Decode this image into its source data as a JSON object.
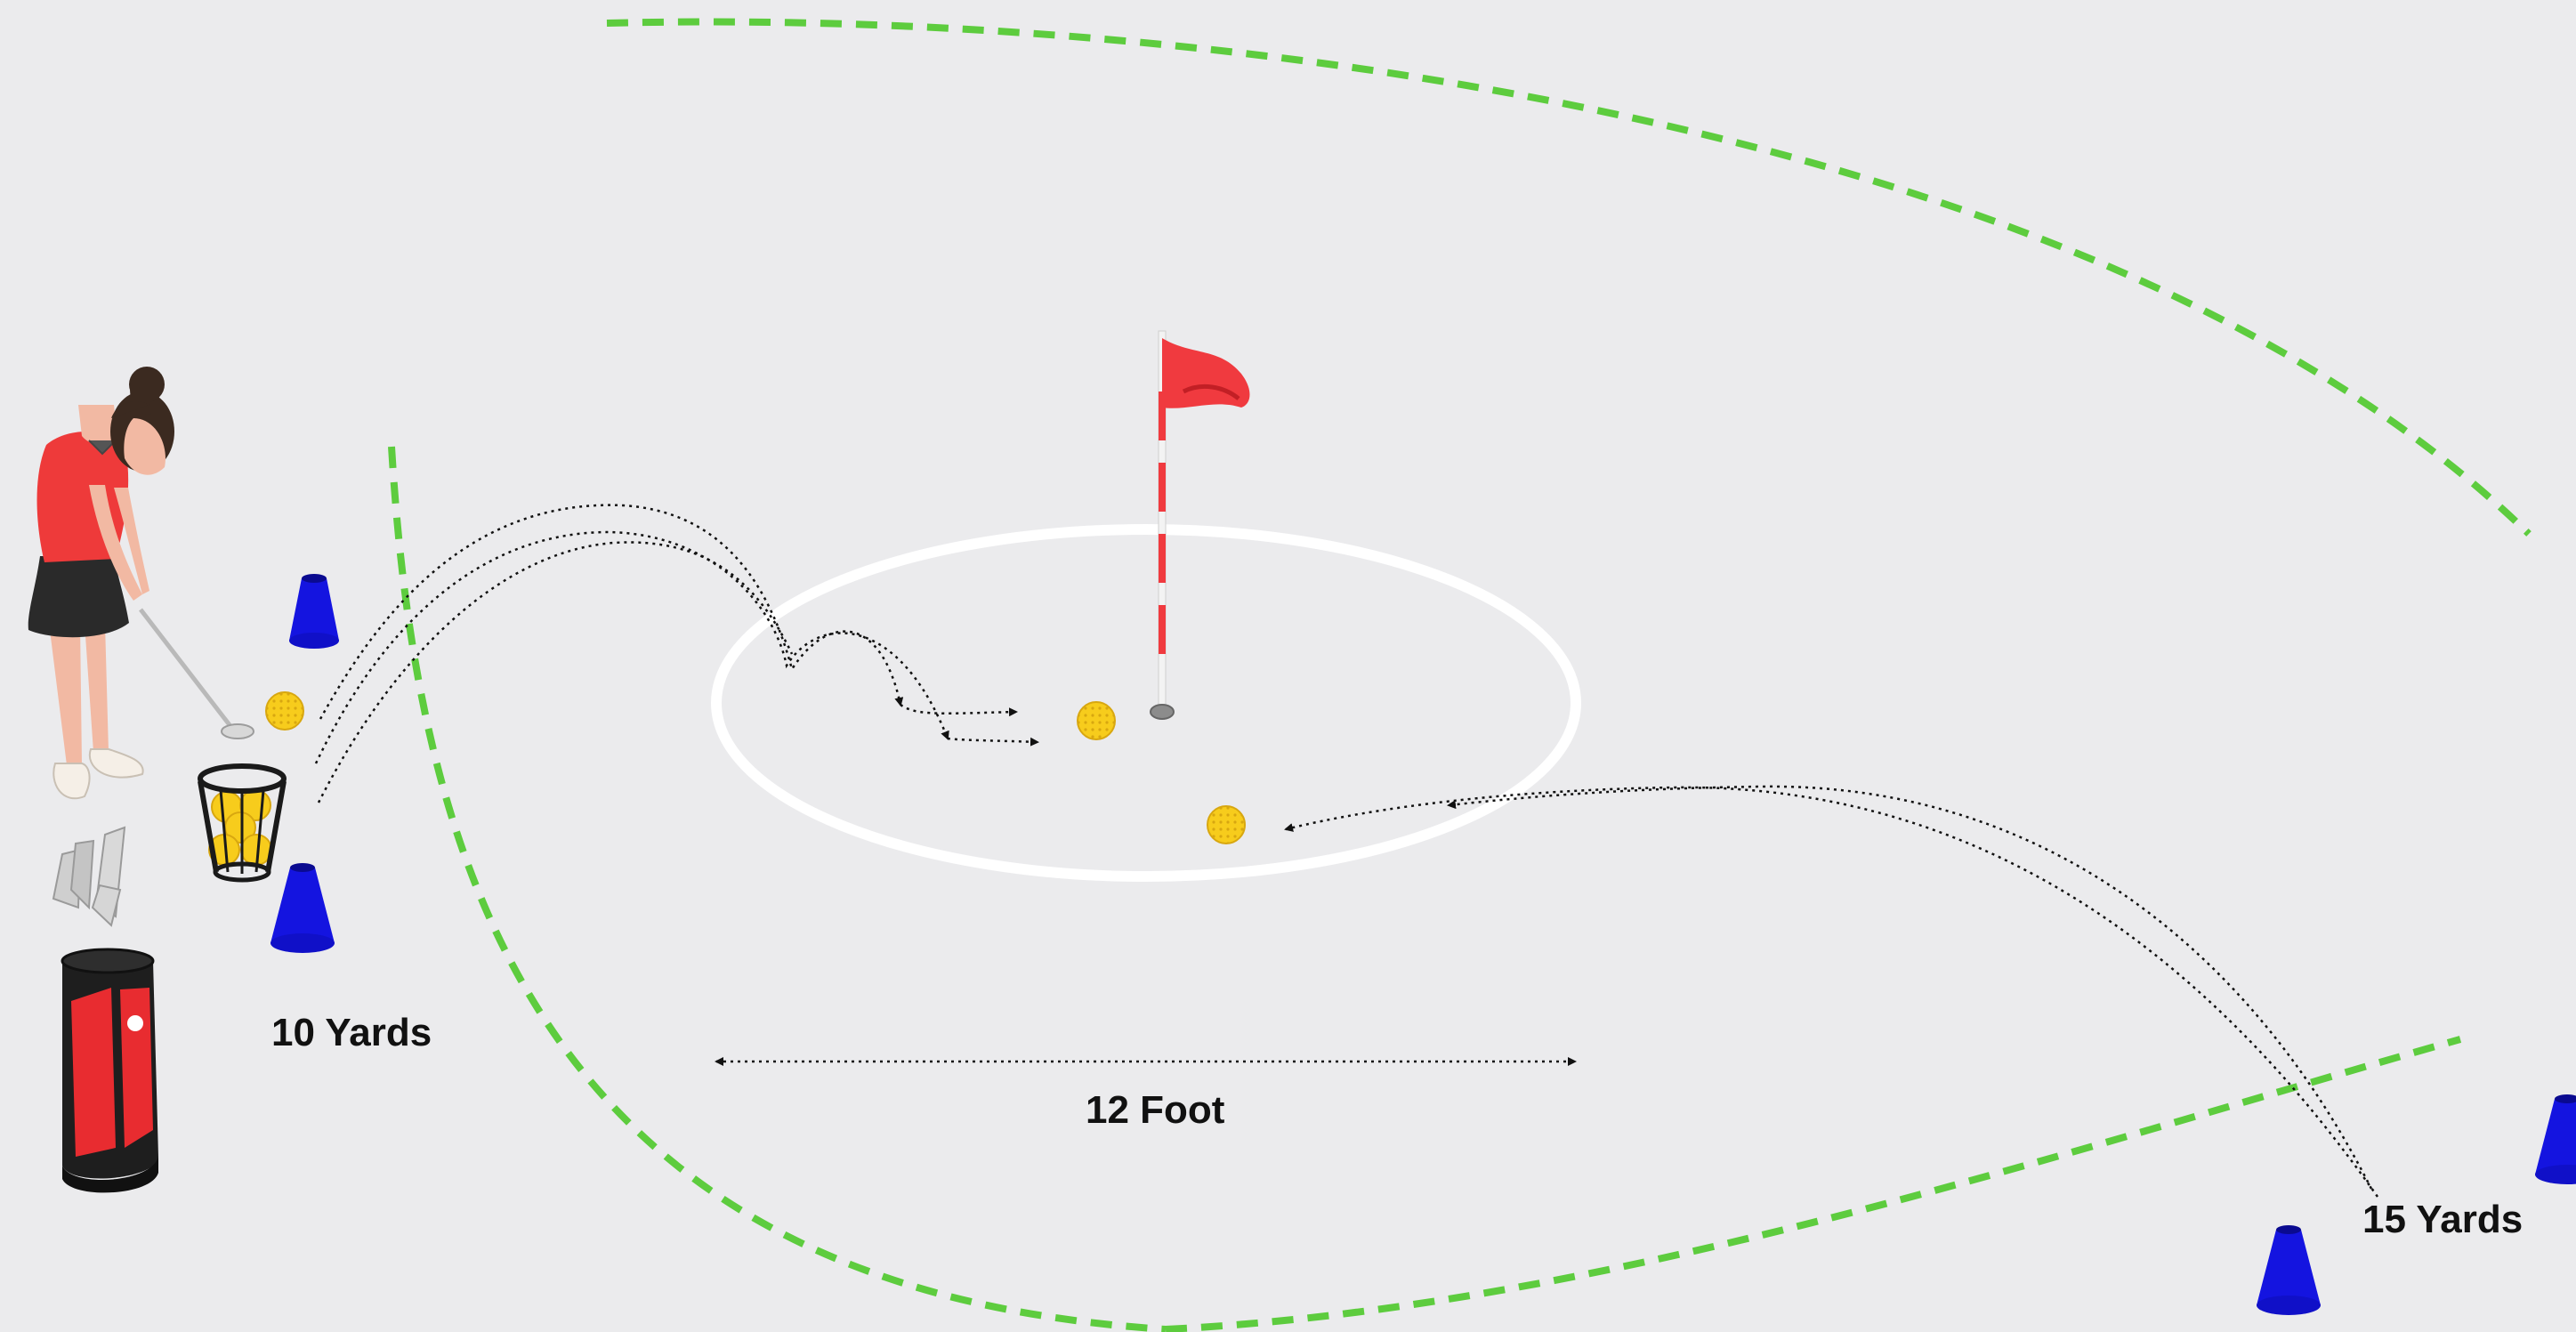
{
  "labels": {
    "ten_yards": "10 Yards",
    "twelve_foot": "12 Foot",
    "fifteen_yards": "15 Yards"
  },
  "colors": {
    "background": "#ebebed",
    "boundary_line": "#5dcc3e",
    "cone": "#1414e0",
    "flag": "#f03a3f",
    "ball": "#f7cc1c",
    "green_ring": "#ffffff",
    "shirt": "#ee3a3a",
    "skirt": "#2a2a2a"
  },
  "icons": {
    "golfer": "golfer-icon",
    "cone": "cone-icon",
    "ball": "golf-ball-icon",
    "basket": "ball-basket-icon",
    "bag": "golf-bag-icon",
    "flag": "flag-icon",
    "hole": "hole-icon"
  }
}
